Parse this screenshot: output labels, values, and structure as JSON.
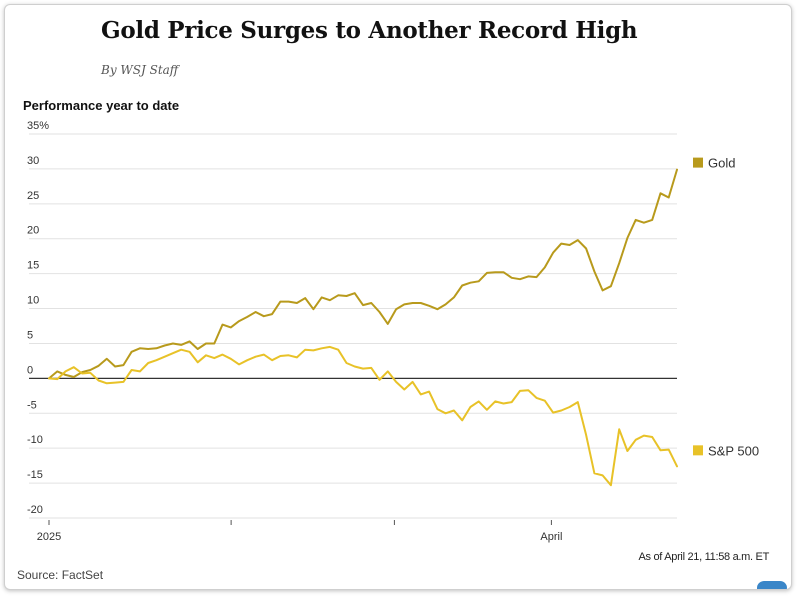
{
  "header": {
    "title": "Gold Price Surges to Another Record High",
    "byline": "By WSJ Staff",
    "subtitle": "Performance year to date"
  },
  "footer": {
    "source": "Source: FactSet",
    "as_of": "As of April 21, 11:58 a.m. ET"
  },
  "chart_data": {
    "type": "line",
    "title": "Gold Price Surges to Another Record High",
    "subtitle": "Performance year to date",
    "ylim": [
      -20,
      35
    ],
    "yticks": [
      35,
      30,
      25,
      20,
      15,
      10,
      5,
      0,
      -5,
      -10,
      -15,
      -20
    ],
    "ytick_labels": [
      "35%",
      "30",
      "25",
      "20",
      "15",
      "10",
      "5",
      "0",
      "-5",
      "-10",
      "-15",
      "-20"
    ],
    "xlabels": [
      "2025",
      "April"
    ],
    "grid": true,
    "legend": "right, at line ends",
    "series": [
      {
        "name": "Gold",
        "color": "#b89a1c",
        "values": [
          0,
          1.0,
          0.5,
          0.2,
          0.9,
          1.2,
          1.8,
          2.8,
          1.7,
          1.9,
          3.8,
          4.3,
          4.2,
          4.3,
          4.7,
          5.0,
          4.8,
          5.3,
          4.2,
          5.0,
          5.0,
          7.7,
          7.3,
          8.2,
          8.8,
          9.5,
          8.9,
          9.2,
          11.0,
          11.0,
          10.8,
          11.5,
          9.9,
          11.6,
          11.2,
          11.9,
          11.8,
          12.2,
          10.5,
          10.8,
          9.5,
          7.8,
          9.9,
          10.6,
          10.8,
          10.8,
          10.4,
          9.9,
          10.6,
          11.6,
          13.3,
          13.7,
          13.9,
          15.1,
          15.2,
          15.2,
          14.4,
          14.2,
          14.6,
          14.5,
          15.9,
          18.0,
          19.3,
          19.1,
          19.8,
          18.6,
          15.3,
          12.6,
          13.2,
          16.5,
          20.1,
          22.7,
          22.3,
          22.7,
          26.5,
          25.9,
          29.9
        ]
      },
      {
        "name": "S&P 500",
        "color": "#e8c228",
        "values": [
          0,
          -0.1,
          1.0,
          1.6,
          0.7,
          0.8,
          -0.3,
          -0.7,
          -0.6,
          -0.5,
          1.2,
          1.0,
          2.2,
          2.6,
          3.1,
          3.6,
          4.1,
          3.8,
          2.3,
          3.3,
          2.9,
          3.4,
          2.8,
          2.0,
          2.6,
          3.1,
          3.4,
          2.6,
          3.2,
          3.3,
          3.0,
          4.1,
          4.0,
          4.3,
          4.5,
          4.1,
          2.2,
          1.7,
          1.4,
          1.5,
          -0.2,
          1.0,
          -0.5,
          -1.6,
          -0.5,
          -2.3,
          -1.9,
          -4.4,
          -5.0,
          -4.6,
          -6.0,
          -4.1,
          -3.3,
          -4.5,
          -3.3,
          -3.6,
          -3.4,
          -1.8,
          -1.7,
          -2.8,
          -3.2,
          -4.9,
          -4.6,
          -4.1,
          -3.4,
          -8.1,
          -13.6,
          -13.9,
          -15.3,
          -7.3,
          -10.4,
          -8.8,
          -8.2,
          -8.4,
          -10.3,
          -10.2,
          -12.6
        ]
      }
    ],
    "xtick_fractions": [
      0,
      0.29,
      0.55,
      0.8
    ]
  }
}
